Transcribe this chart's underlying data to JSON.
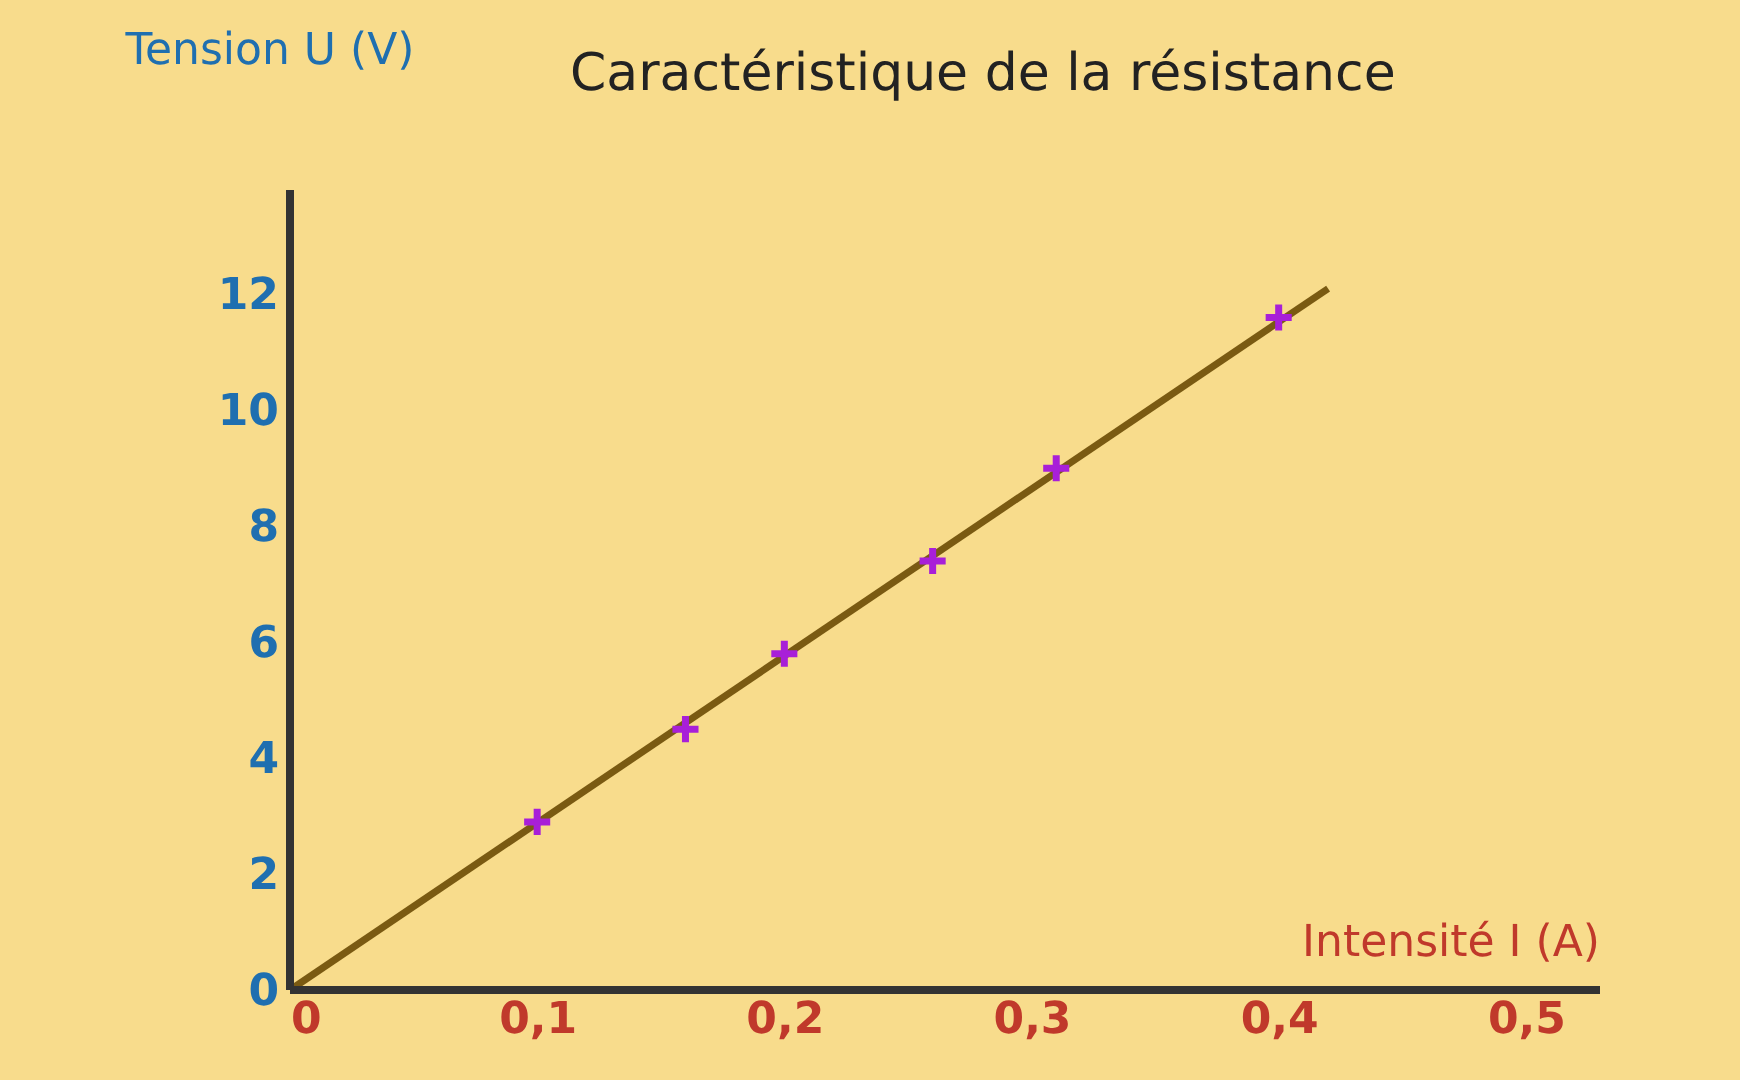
{
  "chart_data": {
    "type": "scatter",
    "title": "Caractéristique de la résistance",
    "xlabel": "Intensité I (A)",
    "ylabel": "Tension U (V)",
    "series": [
      {
        "type": "line",
        "color": "#7a5a12",
        "x": [
          0,
          0.42
        ],
        "values": [
          0,
          12.1
        ],
        "line_style": "solid",
        "marker": "none"
      },
      {
        "color": "#a81fd8",
        "x": [
          0.1,
          0.16,
          0.2,
          0.26,
          0.31,
          0.4
        ],
        "values": [
          2.9,
          4.5,
          5.8,
          7.4,
          9.0,
          11.6
        ],
        "marker": "cross"
      }
    ],
    "xlim": [
      0,
      0.53
    ],
    "ylim": [
      0,
      13.8
    ],
    "xticks": [
      0,
      {
        "value": 0.1,
        "label": "0,1"
      },
      {
        "value": 0.2,
        "label": "0,2"
      },
      {
        "value": 0.3,
        "label": "0,3"
      },
      {
        "value": 0.4,
        "label": "0,4"
      },
      {
        "value": 0.5,
        "label": "0,5"
      }
    ],
    "yticks": [
      0,
      2,
      4,
      6,
      8,
      10,
      12
    ],
    "grid": false
  }
}
